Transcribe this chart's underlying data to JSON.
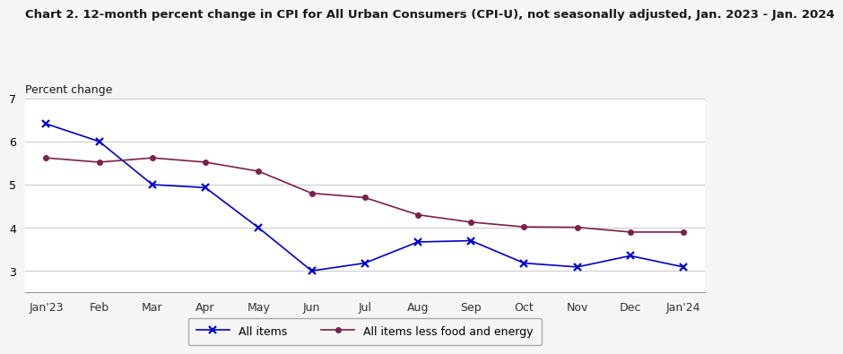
{
  "title": "Chart 2. 12-month percent change in CPI for All Urban Consumers (CPI-U), not seasonally adjusted, Jan. 2023 - Jan. 2024",
  "ylabel": "Percent change",
  "x_labels": [
    "Jan'23",
    "Feb",
    "Mar",
    "Apr",
    "May",
    "Jun",
    "Jul",
    "Aug",
    "Sep",
    "Oct",
    "Nov",
    "Dec",
    "Jan'24"
  ],
  "all_items": [
    6.41,
    6.0,
    5.0,
    4.93,
    4.0,
    3.0,
    3.18,
    3.67,
    3.7,
    3.18,
    3.09,
    3.35,
    3.09
  ],
  "all_items_less": [
    5.62,
    5.52,
    5.62,
    5.52,
    5.31,
    4.8,
    4.7,
    4.3,
    4.13,
    4.02,
    4.01,
    3.9,
    3.9
  ],
  "all_items_color": "#0000CC",
  "all_items_less_color": "#7B1F4B",
  "ylim_min": 2.5,
  "ylim_max": 7.0,
  "yticks": [
    3,
    4,
    5,
    6,
    7
  ],
  "background_color": "#F5F5F5",
  "plot_bg_color": "#FFFFFF",
  "title_fontsize": 9.5,
  "ylabel_fontsize": 9,
  "tick_fontsize": 9,
  "legend_fontsize": 9
}
